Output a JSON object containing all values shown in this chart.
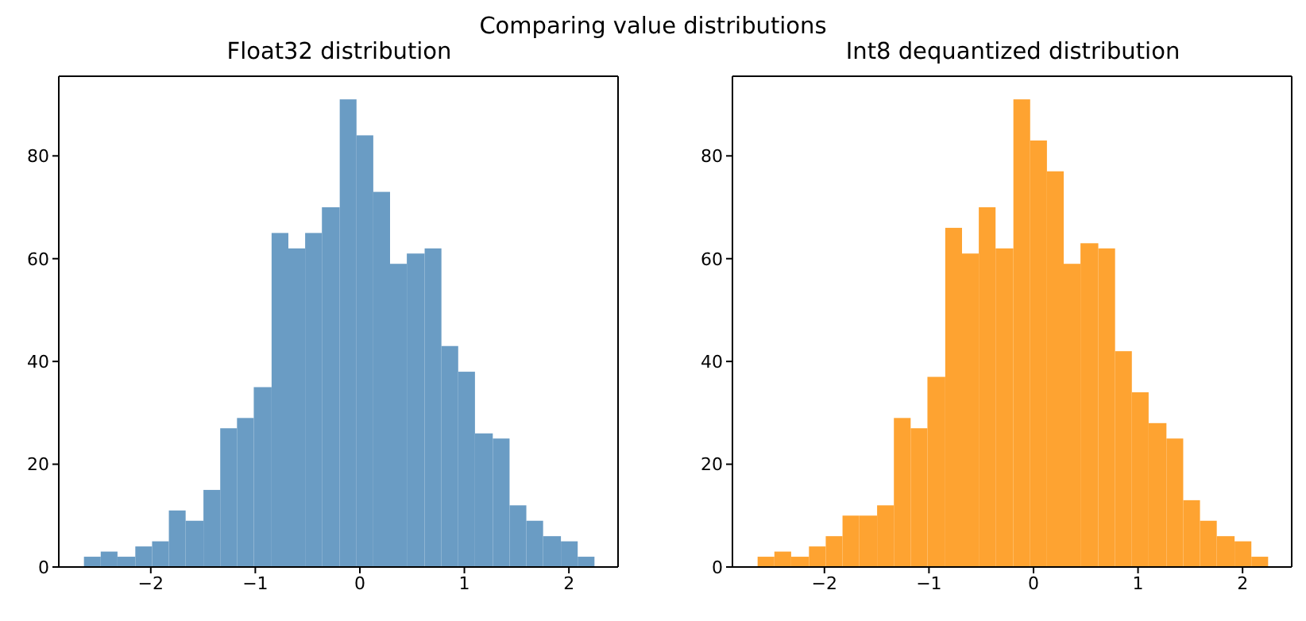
{
  "chart_data": [
    {
      "type": "histogram",
      "title": "Float32 distribution",
      "annotations": [
        "Comparing value distributions"
      ],
      "color": "#6a9cc4",
      "bins": [
        -2.64,
        -2.48,
        -2.32,
        -2.15,
        -1.99,
        -1.83,
        -1.67,
        -1.5,
        -1.34,
        -1.18,
        -1.02,
        -0.85,
        -0.69,
        -0.53,
        -0.37,
        -0.2,
        -0.04,
        0.12,
        0.28,
        0.44,
        0.61,
        0.77,
        0.93,
        1.09,
        1.26,
        1.42,
        1.58,
        1.74,
        1.91,
        2.07,
        2.23
      ],
      "values": [
        2,
        3,
        2,
        4,
        5,
        11,
        9,
        15,
        27,
        29,
        35,
        65,
        62,
        65,
        70,
        91,
        84,
        73,
        59,
        61,
        62,
        43,
        38,
        26,
        25,
        12,
        9,
        6,
        5,
        2
      ],
      "xlim": [
        -2.88,
        2.47
      ],
      "xticks": [
        -2,
        -1,
        0,
        1,
        2
      ],
      "ylim": [
        0,
        95.5
      ],
      "yticks": [
        0,
        20,
        40,
        60,
        80
      ]
    },
    {
      "type": "histogram",
      "title": "Int8 dequantized distribution",
      "color": "#fea331",
      "bins": [
        -2.64,
        -2.48,
        -2.32,
        -2.15,
        -1.99,
        -1.83,
        -1.67,
        -1.5,
        -1.34,
        -1.18,
        -1.02,
        -0.85,
        -0.69,
        -0.53,
        -0.37,
        -0.2,
        -0.04,
        0.12,
        0.28,
        0.44,
        0.61,
        0.77,
        0.93,
        1.09,
        1.26,
        1.42,
        1.58,
        1.74,
        1.91,
        2.07,
        2.23
      ],
      "values": [
        2,
        3,
        2,
        4,
        6,
        10,
        10,
        12,
        29,
        27,
        37,
        66,
        61,
        70,
        62,
        91,
        83,
        77,
        59,
        63,
        62,
        42,
        34,
        28,
        25,
        13,
        9,
        6,
        5,
        2
      ],
      "xlim": [
        -2.88,
        2.47
      ],
      "xticks": [
        -2,
        -1,
        0,
        1,
        2
      ],
      "ylim": [
        0,
        95.5
      ],
      "yticks": [
        0,
        20,
        40,
        60,
        80
      ]
    }
  ]
}
